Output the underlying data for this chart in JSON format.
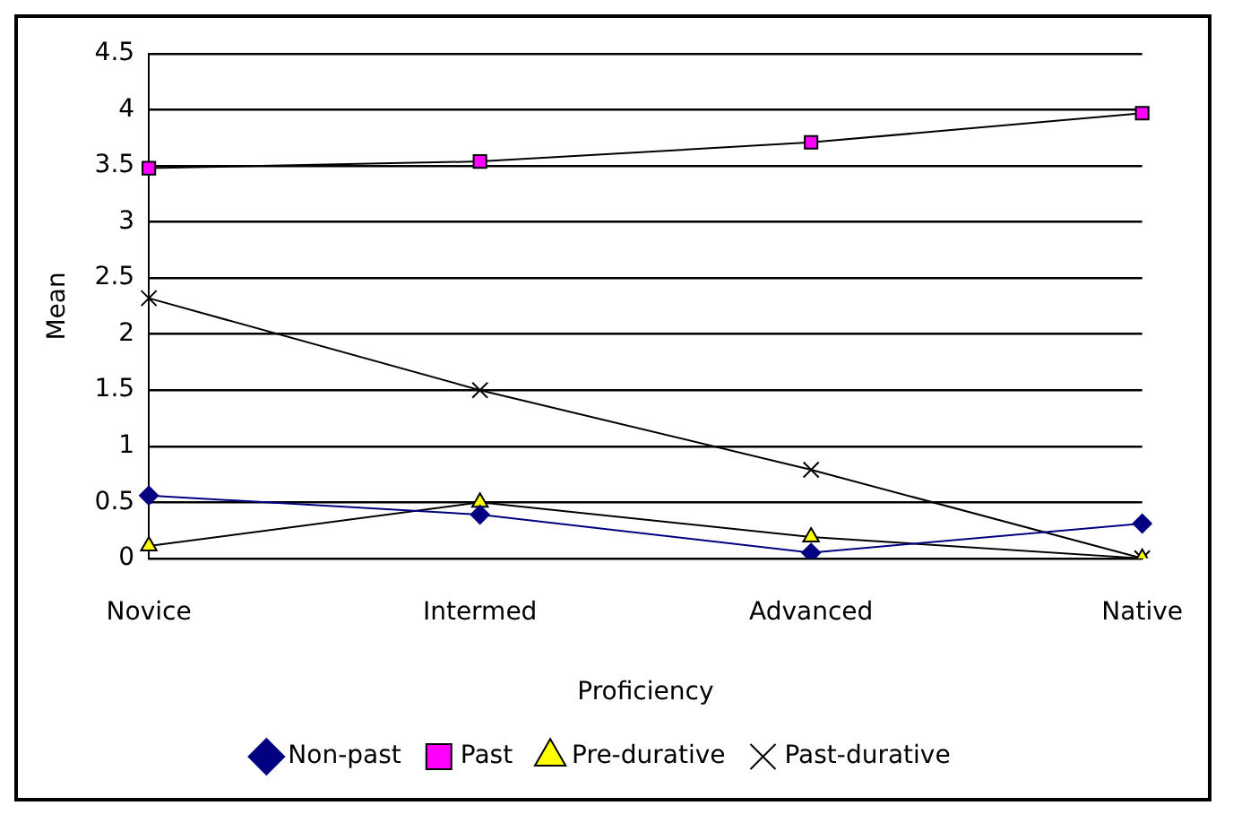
{
  "chart_data": {
    "type": "line",
    "xlabel": "Proficiency",
    "ylabel": "Mean",
    "categories": [
      "Novice",
      "Intermed",
      "Advanced",
      "Native"
    ],
    "ylim": [
      0,
      4.5
    ],
    "yticks": [
      0,
      0.5,
      1,
      1.5,
      2,
      2.5,
      3,
      3.5,
      4,
      4.5
    ],
    "grid": "y",
    "legend": "bottom",
    "series": [
      {
        "name": "Non-past",
        "color": "#000080",
        "marker": "diamond",
        "values": [
          0.56,
          0.39,
          0.05,
          0.31
        ]
      },
      {
        "name": "Past",
        "color": "#ff00ff",
        "marker": "square",
        "values": [
          3.48,
          3.54,
          3.71,
          3.97
        ]
      },
      {
        "name": "Pre-durative",
        "color": "#ffff00",
        "marker": "triangle",
        "values": [
          0.11,
          0.5,
          0.19,
          0
        ]
      },
      {
        "name": "Past-durative",
        "color": "#000000",
        "marker": "cross",
        "values": [
          2.32,
          1.5,
          0.79,
          0
        ]
      }
    ]
  }
}
